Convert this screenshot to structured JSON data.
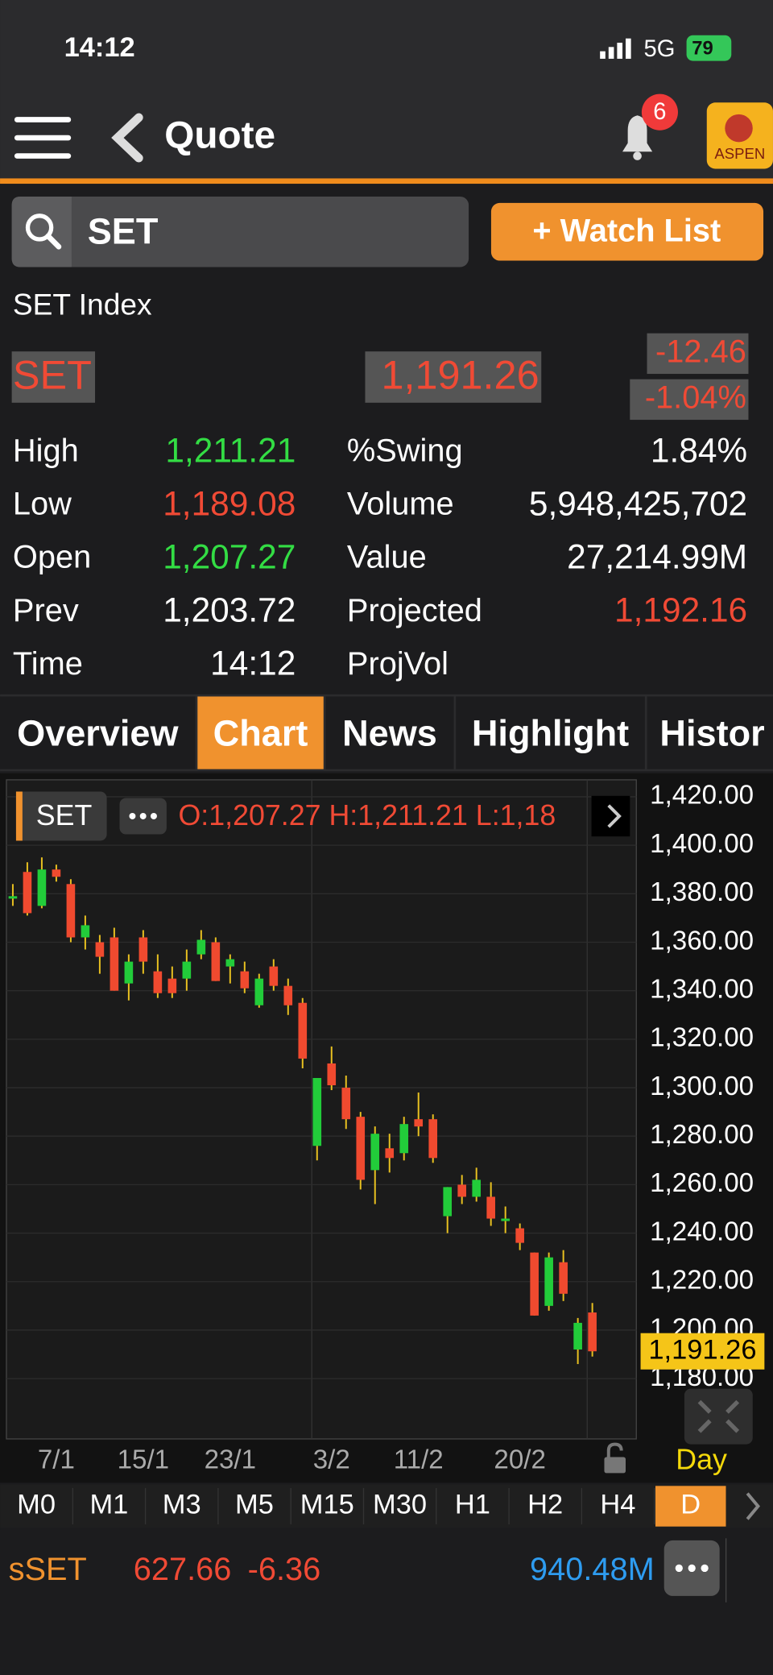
{
  "status_bar": {
    "time": "14:12",
    "network": "5G",
    "battery": "79"
  },
  "header": {
    "title": "Quote",
    "notifications": "6",
    "logo": "ASPEN"
  },
  "search": {
    "query": "SET",
    "watch_button": "+ Watch List"
  },
  "quote": {
    "name": "SET Index",
    "symbol": "SET",
    "last": "1,191.26",
    "change": "-12.46",
    "change_pct": "-1.04%",
    "stats_left": [
      {
        "label": "High",
        "value": "1,211.21",
        "color": "#33dd44"
      },
      {
        "label": "Low",
        "value": "1,189.08",
        "color": "#f04a35"
      },
      {
        "label": "Open",
        "value": "1,207.27",
        "color": "#33dd44"
      },
      {
        "label": "Prev",
        "value": "1,203.72",
        "color": "#ffffff"
      },
      {
        "label": "Time",
        "value": "14:12",
        "color": "#ffffff"
      }
    ],
    "stats_right": [
      {
        "label": "%Swing",
        "value": "1.84%",
        "color": "#ffffff"
      },
      {
        "label": "Volume",
        "value": "5,948,425,702",
        "color": "#ffffff"
      },
      {
        "label": "Value",
        "value": "27,214.99M",
        "color": "#ffffff"
      },
      {
        "label": "Projected",
        "value": "1,192.16",
        "color": "#f04a35"
      },
      {
        "label": "ProjVol"
      }
    ]
  },
  "tabs": {
    "items": [
      "Overview",
      "Chart",
      "News",
      "Highlight",
      "Histor"
    ],
    "active": 1
  },
  "chart": {
    "type": "candlestick",
    "symbol_tag": "SET",
    "ohlc_text": "O:1,207.27  H:1,211.21  L:1,18",
    "period_label": "Day",
    "up_color": "#22cc3a",
    "down_color": "#f04a2f",
    "categories": [
      null,
      null,
      null,
      "7/1",
      null,
      null,
      null,
      null,
      null,
      "15/1",
      null,
      null,
      null,
      null,
      null,
      "23/1",
      null,
      null,
      null,
      null,
      null,
      null,
      "3/2",
      null,
      null,
      null,
      null,
      null,
      "11/2",
      null,
      null,
      null,
      null,
      null,
      null,
      "20/2",
      null,
      null,
      null,
      null,
      null
    ],
    "open": [
      1378,
      1389,
      1375,
      1390,
      1384,
      1362,
      1360,
      1362,
      1343,
      1362,
      1348,
      1345,
      1345,
      1355,
      1360,
      1350,
      1348,
      1334,
      1350,
      1342,
      1335,
      1276,
      1310,
      1300,
      1288,
      1266,
      1275,
      1273,
      1287,
      1287,
      1247,
      1260,
      1255,
      1255,
      1245,
      1242,
      1232,
      1210,
      1228,
      1192,
      1207.27
    ],
    "high": [
      1384,
      1393,
      1395,
      1392,
      1386,
      1371,
      1363,
      1366,
      1355,
      1365,
      1355,
      1350,
      1357,
      1365,
      1362,
      1355,
      1352,
      1347,
      1353,
      1345,
      1337,
      1304,
      1317,
      1305,
      1290,
      1284,
      1281,
      1288,
      1298,
      1289,
      1259,
      1264,
      1267,
      1261,
      1251,
      1244,
      1232,
      1232,
      1233,
      1205,
      1211.21
    ],
    "low": [
      1375,
      1371,
      1374,
      1385,
      1360,
      1357,
      1347,
      1340,
      1336,
      1347,
      1337,
      1337,
      1340,
      1353,
      1344,
      1343,
      1339,
      1333,
      1340,
      1330,
      1308,
      1270,
      1299,
      1283,
      1258,
      1252,
      1265,
      1270,
      1280,
      1269,
      1240,
      1252,
      1253,
      1243,
      1240,
      1233,
      1206,
      1208,
      1212,
      1186,
      1189.08
    ],
    "close": [
      1379,
      1372,
      1390,
      1387,
      1362,
      1367,
      1354,
      1340,
      1352,
      1352,
      1339,
      1339,
      1352,
      1361,
      1344,
      1353,
      1341,
      1345,
      1342,
      1334,
      1312,
      1304,
      1301,
      1287,
      1262,
      1281,
      1271,
      1285,
      1284,
      1271,
      1259,
      1255,
      1262,
      1246,
      1246,
      1236,
      1206,
      1230,
      1215,
      1203,
      1191.26
    ],
    "ylim": [
      1156,
      1427
    ],
    "yticks": [
      {
        "value": 1420,
        "label": "1,420.00"
      },
      {
        "value": 1400,
        "label": "1,400.00"
      },
      {
        "value": 1380,
        "label": "1,380.00"
      },
      {
        "value": 1360,
        "label": "1,360.00"
      },
      {
        "value": 1340,
        "label": "1,340.00"
      },
      {
        "value": 1320,
        "label": "1,320.00"
      },
      {
        "value": 1300,
        "label": "1,300.00"
      },
      {
        "value": 1280,
        "label": "1,280.00"
      },
      {
        "value": 1260,
        "label": "1,260.00"
      },
      {
        "value": 1240,
        "label": "1,240.00"
      },
      {
        "value": 1220,
        "label": "1,220.00"
      },
      {
        "value": 1200,
        "label": "1,200.00"
      },
      {
        "value": 1180,
        "label": "1,180.00"
      }
    ]
  },
  "timeframes": {
    "items": [
      "M0",
      "M1",
      "M3",
      "M5",
      "M15",
      "M30",
      "H1",
      "H2",
      "H4",
      "D"
    ],
    "active": 9
  },
  "ticker": {
    "symbol": "sSET",
    "price": "627.66",
    "change": "-6.36",
    "value": "940.48M"
  }
}
